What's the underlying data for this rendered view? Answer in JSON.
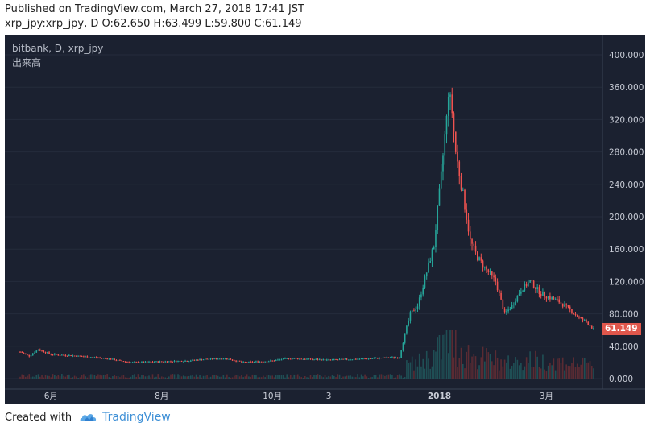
{
  "header": {
    "published": "Published on TradingView.com, March 27, 2018 17:41 JST",
    "ohlc": "xrp_jpy:xrp_jpy, D O:62.650 H:63.499 L:59.800 C:61.149"
  },
  "legend": {
    "symbol": "bitbank, D, xrp_jpy",
    "volume_label": "出来高"
  },
  "footer": {
    "created_with": "Created with",
    "brand": "TradingView"
  },
  "colors": {
    "background": "#1b2130",
    "up": "#26a69a",
    "down": "#ef5350",
    "last_price": "#e0574c",
    "axis_text": "#c8ccd6"
  },
  "chart_data": {
    "type": "candlestick",
    "price_axis_ticks": [
      "400.000",
      "360.000",
      "320.000",
      "280.000",
      "240.000",
      "200.000",
      "160.000",
      "120.000",
      "80.000",
      "40.000",
      "0.000"
    ],
    "ylim": [
      -4,
      406
    ],
    "time_axis_ticks": [
      "6月",
      "8月",
      "10月",
      "3",
      "2018",
      "3月"
    ],
    "last_price": 61.149,
    "last_price_label": "61.149",
    "approx_daily_close_series": {
      "description_points_are_date_to_price": true,
      "points": [
        [
          "2017-05-15",
          33
        ],
        [
          "2017-05-20",
          28
        ],
        [
          "2017-05-25",
          36
        ],
        [
          "2017-06-01",
          30
        ],
        [
          "2017-06-15",
          28
        ],
        [
          "2017-07-01",
          25
        ],
        [
          "2017-07-15",
          20
        ],
        [
          "2017-08-01",
          21
        ],
        [
          "2017-08-15",
          22
        ],
        [
          "2017-08-25",
          24
        ],
        [
          "2017-09-05",
          25
        ],
        [
          "2017-09-15",
          20
        ],
        [
          "2017-10-01",
          22
        ],
        [
          "2017-10-10",
          25
        ],
        [
          "2017-10-20",
          24
        ],
        [
          "2017-11-01",
          23
        ],
        [
          "2017-11-15",
          24
        ],
        [
          "2017-11-25",
          25
        ],
        [
          "2017-12-05",
          26
        ],
        [
          "2017-12-10",
          26
        ],
        [
          "2017-12-13",
          55
        ],
        [
          "2017-12-16",
          80
        ],
        [
          "2017-12-20",
          90
        ],
        [
          "2017-12-26",
          140
        ],
        [
          "2017-12-29",
          165
        ],
        [
          "2018-01-02",
          250
        ],
        [
          "2018-01-04",
          300
        ],
        [
          "2018-01-05",
          320
        ],
        [
          "2018-01-06",
          355
        ],
        [
          "2018-01-08",
          330
        ],
        [
          "2018-01-10",
          280
        ],
        [
          "2018-01-13",
          240
        ],
        [
          "2018-01-16",
          200
        ],
        [
          "2018-01-18",
          170
        ],
        [
          "2018-01-22",
          150
        ],
        [
          "2018-01-25",
          140
        ],
        [
          "2018-02-01",
          120
        ],
        [
          "2018-02-06",
          80
        ],
        [
          "2018-02-10",
          90
        ],
        [
          "2018-02-15",
          110
        ],
        [
          "2018-02-20",
          120
        ],
        [
          "2018-02-26",
          105
        ],
        [
          "2018-03-03",
          100
        ],
        [
          "2018-03-08",
          95
        ],
        [
          "2018-03-14",
          85
        ],
        [
          "2018-03-19",
          75
        ],
        [
          "2018-03-23",
          70
        ],
        [
          "2018-03-27",
          61.149
        ]
      ]
    },
    "volume_note": "volume histogram shown at bottom of the price pane"
  }
}
